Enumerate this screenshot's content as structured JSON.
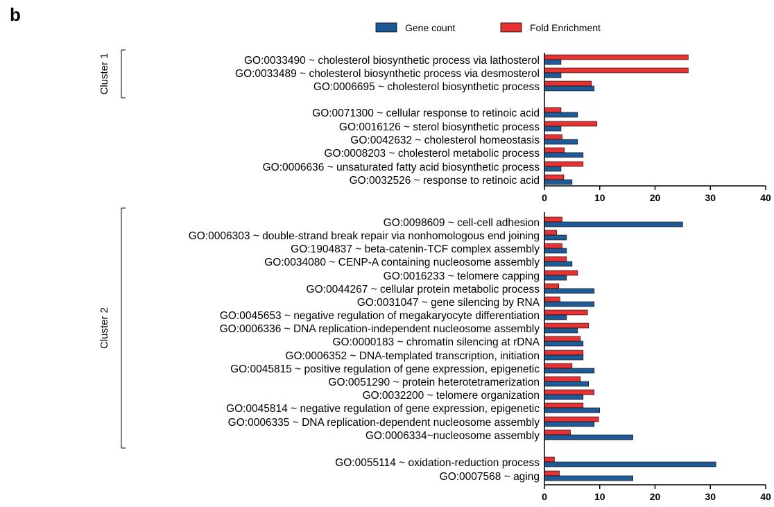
{
  "panel_label": "b",
  "chart_data": {
    "type": "bar",
    "orientation": "horizontal",
    "legend": {
      "placement": "top-center",
      "entries": [
        {
          "name": "Gene count",
          "color": "#1f5a96"
        },
        {
          "name": "Fold Enrichment",
          "color": "#e63232"
        }
      ]
    },
    "series": [
      {
        "name": "Gene count",
        "color": "#1f5a96"
      },
      {
        "name": "Fold Enrichment",
        "color": "#e63232"
      }
    ],
    "panels": [
      {
        "xlim": [
          0,
          40
        ],
        "xticks": [
          0,
          10,
          20,
          30,
          40
        ],
        "groups": [
          {
            "cluster_label": "Cluster 1",
            "categories": [
              {
                "label": "GO:0033490 ~ cholesterol biosynthetic process via lathosterol",
                "gene_count": 3,
                "fold_enrichment": 26
              },
              {
                "label": "GO:0033489 ~ cholesterol biosynthetic process via desmosterol",
                "gene_count": 3,
                "fold_enrichment": 26
              },
              {
                "label": "GO:0006695 ~ cholesterol biosynthetic process",
                "gene_count": 9,
                "fold_enrichment": 8.5
              }
            ]
          },
          {
            "cluster_label": "",
            "categories": [
              {
                "label": "GO:0071300 ~ cellular response to retinoic acid",
                "gene_count": 6,
                "fold_enrichment": 3
              },
              {
                "label": "GO:0016126 ~ sterol biosynthetic process",
                "gene_count": 3,
                "fold_enrichment": 9.5
              },
              {
                "label": "GO:0042632 ~ cholesterol homeostasis",
                "gene_count": 6,
                "fold_enrichment": 3.2
              },
              {
                "label": "GO:0008203 ~ cholesterol metabolic process",
                "gene_count": 7,
                "fold_enrichment": 3.6
              },
              {
                "label": "GO:0006636 ~ unsaturated fatty acid biosynthetic process",
                "gene_count": 3,
                "fold_enrichment": 7
              },
              {
                "label": "GO:0032526 ~ response to retinoic acid",
                "gene_count": 5,
                "fold_enrichment": 3.5
              }
            ]
          }
        ]
      },
      {
        "xlim": [
          0,
          40
        ],
        "xticks": [
          0,
          10,
          20,
          30,
          40
        ],
        "groups": [
          {
            "cluster_label": "Cluster 2",
            "categories": [
              {
                "label": "GO:0098609 ~ cell-cell adhesion",
                "gene_count": 25,
                "fold_enrichment": 3.2
              },
              {
                "label": "GO:0006303 ~ double-strand break repair via nonhomologous end joining",
                "gene_count": 4,
                "fold_enrichment": 2.2
              },
              {
                "label": "GO:1904837 ~ beta-catenin-TCF complex assembly",
                "gene_count": 4,
                "fold_enrichment": 3.2
              },
              {
                "label": "GO:0034080 ~ CENP-A containing nucleosome assembly",
                "gene_count": 5,
                "fold_enrichment": 4
              },
              {
                "label": "GO:0016233 ~ telomere capping",
                "gene_count": 4,
                "fold_enrichment": 6
              },
              {
                "label": "GO:0044267 ~ cellular protein metabolic process",
                "gene_count": 9,
                "fold_enrichment": 2.6
              },
              {
                "label": "GO:0031047 ~ gene silencing by RNA",
                "gene_count": 9,
                "fold_enrichment": 2.8
              },
              {
                "label": "GO:0045653 ~ negative regulation of megakaryocyte differentiation",
                "gene_count": 4,
                "fold_enrichment": 7.8
              },
              {
                "label": "GO:0006336 ~ DNA replication-independent nucleosome assembly",
                "gene_count": 6,
                "fold_enrichment": 8
              },
              {
                "label": "GO:0000183 ~ chromatin silencing at rDNA",
                "gene_count": 7,
                "fold_enrichment": 6.5
              },
              {
                "label": "GO:0006352 ~ DNA-templated transcription, initiation",
                "gene_count": 7,
                "fold_enrichment": 7
              },
              {
                "label": "GO:0045815 ~ positive regulation of gene expression, epigenetic",
                "gene_count": 9,
                "fold_enrichment": 5
              },
              {
                "label": "GO:0051290 ~ protein heterotetramerization",
                "gene_count": 8,
                "fold_enrichment": 6.5
              },
              {
                "label": "GO:0032200 ~ telomere organization",
                "gene_count": 7,
                "fold_enrichment": 9
              },
              {
                "label": "GO:0045814 ~ negative regulation of gene expression, epigenetic",
                "gene_count": 10,
                "fold_enrichment": 7
              },
              {
                "label": "GO:0006335 ~ DNA replication-dependent nucleosome assembly",
                "gene_count": 9,
                "fold_enrichment": 9.8
              },
              {
                "label": "GO:0006334~nucleosome assembly",
                "gene_count": 16,
                "fold_enrichment": 4.7
              }
            ]
          },
          {
            "cluster_label": "",
            "categories": [
              {
                "label": "GO:0055114 ~ oxidation-reduction process",
                "gene_count": 31,
                "fold_enrichment": 1.8
              },
              {
                "label": "GO:0007568 ~ aging",
                "gene_count": 16,
                "fold_enrichment": 2.7
              }
            ]
          }
        ]
      }
    ]
  }
}
